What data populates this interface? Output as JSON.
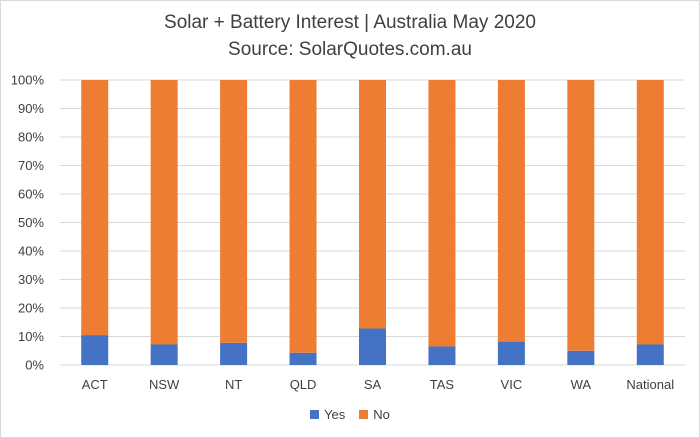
{
  "chart_data": {
    "type": "bar",
    "stacked": true,
    "percent_stacked": true,
    "title": "Solar + Battery Interest  | Australia May 2020",
    "subtitle": "Source: SolarQuotes.com.au",
    "categories": [
      "ACT",
      "NSW",
      "NT",
      "QLD",
      "SA",
      "TAS",
      "VIC",
      "WA",
      "National"
    ],
    "series": [
      {
        "name": "Yes",
        "color": "#4472c4",
        "values": [
          10.5,
          7.2,
          7.8,
          4.3,
          12.8,
          6.5,
          8.2,
          5.0,
          7.2
        ]
      },
      {
        "name": "No",
        "color": "#ed7d31",
        "values": [
          89.5,
          92.8,
          92.2,
          95.7,
          87.2,
          93.5,
          91.8,
          95.0,
          92.8
        ]
      }
    ],
    "ylim": [
      0,
      100
    ],
    "yticks": [
      "0%",
      "10%",
      "20%",
      "30%",
      "40%",
      "50%",
      "60%",
      "70%",
      "80%",
      "90%",
      "100%"
    ],
    "grid": true,
    "legend_position": "bottom"
  }
}
